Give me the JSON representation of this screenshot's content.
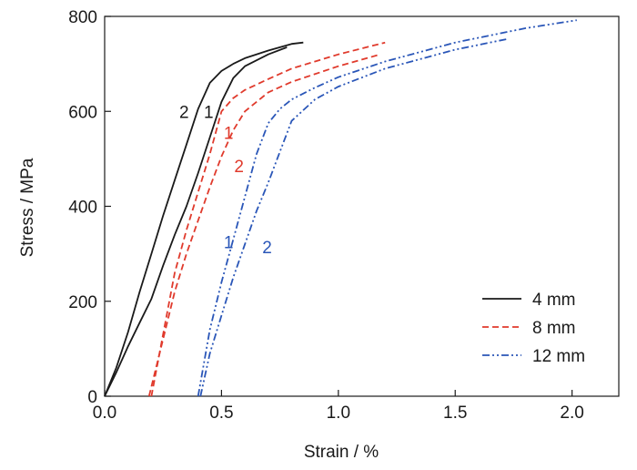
{
  "chart_data": {
    "type": "line",
    "title": "",
    "xlabel": "Strain / %",
    "ylabel": "Stress / MPa",
    "xlim": [
      0,
      2.2
    ],
    "ylim": [
      0,
      800
    ],
    "xticks": [
      0.0,
      0.5,
      1.0,
      1.5,
      2.0
    ],
    "xtick_labels": [
      "0.0",
      "0.5",
      "1.0",
      "1.5",
      "2.0"
    ],
    "yticks": [
      0,
      200,
      400,
      600,
      800
    ],
    "ytick_labels": [
      "0",
      "200",
      "400",
      "600",
      "800"
    ],
    "grid": false,
    "legend_position": "bottom-right",
    "series": [
      {
        "name": "4 mm",
        "legend": true,
        "color": "#1a1a1a",
        "dash": "solid",
        "curve_label": "2",
        "x": [
          0.0,
          0.05,
          0.1,
          0.15,
          0.2,
          0.25,
          0.3,
          0.35,
          0.4,
          0.45,
          0.5,
          0.55,
          0.6,
          0.7,
          0.8,
          0.85
        ],
        "y": [
          0,
          60,
          135,
          220,
          300,
          380,
          455,
          530,
          605,
          660,
          685,
          700,
          712,
          728,
          742,
          745
        ]
      },
      {
        "name": "4 mm",
        "legend": false,
        "color": "#1a1a1a",
        "dash": "solid",
        "curve_label": "1",
        "x": [
          0.0,
          0.05,
          0.1,
          0.15,
          0.2,
          0.25,
          0.3,
          0.35,
          0.4,
          0.45,
          0.5,
          0.55,
          0.6,
          0.7,
          0.78
        ],
        "y": [
          0,
          50,
          105,
          155,
          205,
          275,
          340,
          400,
          470,
          545,
          620,
          670,
          695,
          720,
          735
        ]
      },
      {
        "name": "8 mm",
        "legend": true,
        "color": "#e03a2c",
        "dash": "dashed",
        "curve_label": "1",
        "x": [
          0.2,
          0.25,
          0.3,
          0.35,
          0.4,
          0.45,
          0.5,
          0.55,
          0.6,
          0.7,
          0.8,
          1.0,
          1.2
        ],
        "y": [
          0,
          130,
          260,
          350,
          430,
          510,
          600,
          628,
          645,
          668,
          690,
          720,
          745
        ]
      },
      {
        "name": "8 mm",
        "legend": false,
        "color": "#e03a2c",
        "dash": "dashed",
        "curve_label": "2",
        "x": [
          0.19,
          0.25,
          0.3,
          0.35,
          0.4,
          0.45,
          0.5,
          0.55,
          0.6,
          0.7,
          0.8,
          1.0,
          1.18
        ],
        "y": [
          0,
          120,
          220,
          300,
          370,
          440,
          505,
          560,
          600,
          640,
          662,
          695,
          720
        ]
      },
      {
        "name": "12 mm",
        "legend": true,
        "color": "#2a56b8",
        "dash": "dashdotdot",
        "curve_label": "1",
        "x": [
          0.4,
          0.45,
          0.5,
          0.55,
          0.6,
          0.65,
          0.7,
          0.75,
          0.8,
          0.9,
          1.0,
          1.2,
          1.5,
          1.8,
          2.02
        ],
        "y": [
          0,
          140,
          240,
          330,
          420,
          510,
          575,
          605,
          625,
          650,
          672,
          705,
          745,
          775,
          792
        ]
      },
      {
        "name": "12 mm",
        "legend": false,
        "color": "#2a56b8",
        "dash": "dashdotdot",
        "curve_label": "2",
        "x": [
          0.41,
          0.45,
          0.5,
          0.55,
          0.6,
          0.65,
          0.7,
          0.75,
          0.8,
          0.9,
          1.0,
          1.2,
          1.5,
          1.72
        ],
        "y": [
          0,
          90,
          170,
          250,
          320,
          390,
          450,
          515,
          580,
          625,
          652,
          690,
          730,
          752
        ]
      }
    ],
    "legend": [
      {
        "label": "4 mm",
        "color": "#1a1a1a",
        "dash": "solid"
      },
      {
        "label": "8 mm",
        "color": "#e03a2c",
        "dash": "dashed"
      },
      {
        "label": "12 mm",
        "color": "#2a56b8",
        "dash": "dashdotdot"
      }
    ]
  }
}
